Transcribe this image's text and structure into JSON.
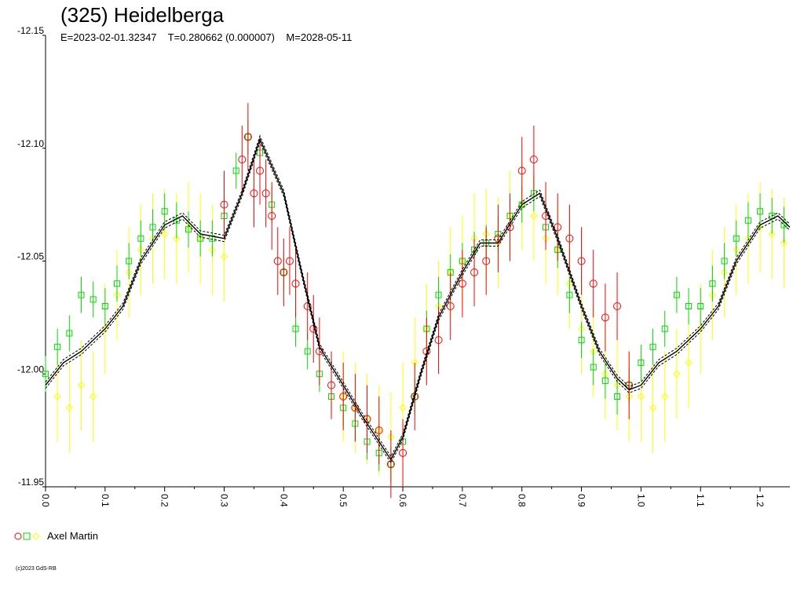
{
  "title": "(325) Heidelberga",
  "subtitle": "E=2023-02-01.32347    T=0.280662 (0.000007)    M=2028-05-11",
  "legend": {
    "label": "Axel Martin"
  },
  "copyright": "(c)2023 GdS-RB",
  "colors": {
    "red": "#ff0000",
    "green": "#00dd00",
    "yellow": "#ffff00",
    "model": "#000000"
  },
  "chart_data": {
    "type": "scatter",
    "title": "(325) Heidelberga",
    "xlabel": "",
    "ylabel": "",
    "xlim": [
      0.0,
      1.25
    ],
    "ylim": [
      -12.15,
      -11.95
    ],
    "y_inverted": true,
    "x_ticks": [
      "0.0",
      "0.1",
      "0.2",
      "0.3",
      "0.4",
      "0.5",
      "0.6",
      "0.7",
      "0.8",
      "0.9",
      "1.0",
      "1.1",
      "1.2"
    ],
    "y_ticks": [
      "-12.15",
      "-12.10",
      "-12.05",
      "-12.00",
      "-11.95"
    ],
    "model_curve": {
      "x": [
        0.0,
        0.03,
        0.06,
        0.1,
        0.13,
        0.16,
        0.2,
        0.23,
        0.26,
        0.3,
        0.33,
        0.36,
        0.4,
        0.43,
        0.46,
        0.5,
        0.53,
        0.56,
        0.58,
        0.6,
        0.63,
        0.66,
        0.7,
        0.73,
        0.76,
        0.8,
        0.83,
        0.86,
        0.9,
        0.93,
        0.96,
        0.98,
        1.0,
        1.03,
        1.06,
        1.1,
        1.13,
        1.16,
        1.2,
        1.23,
        1.25
      ],
      "y": [
        -11.995,
        -12.005,
        -12.01,
        -12.02,
        -12.03,
        -12.05,
        -12.066,
        -12.07,
        -12.062,
        -12.06,
        -12.08,
        -12.104,
        -12.08,
        -12.045,
        -12.012,
        -11.995,
        -11.982,
        -11.97,
        -11.962,
        -11.972,
        -12.0,
        -12.025,
        -12.045,
        -12.058,
        -12.058,
        -12.075,
        -12.08,
        -12.06,
        -12.03,
        -12.01,
        -11.998,
        -11.993,
        -11.995,
        -12.005,
        -12.01,
        -12.02,
        -12.03,
        -12.05,
        -12.066,
        -12.07,
        -12.065
      ]
    },
    "series": [
      {
        "marker": "circle",
        "color": "red",
        "x": [
          0.3,
          0.33,
          0.34,
          0.35,
          0.36,
          0.37,
          0.38,
          0.39,
          0.4,
          0.41,
          0.42,
          0.44,
          0.45,
          0.46,
          0.48,
          0.5,
          0.52,
          0.54,
          0.56,
          0.58,
          0.6,
          0.62,
          0.64,
          0.66,
          0.68,
          0.7,
          0.72,
          0.74,
          0.76,
          0.78,
          0.8,
          0.82,
          0.84,
          0.86,
          0.88,
          0.9,
          0.92,
          0.94,
          0.96,
          0.98
        ],
        "y": [
          -12.075,
          -12.095,
          -12.105,
          -12.08,
          -12.09,
          -12.08,
          -12.07,
          -12.05,
          -12.045,
          -12.05,
          -12.04,
          -12.03,
          -12.02,
          -12.01,
          -11.995,
          -11.99,
          -11.985,
          -11.98,
          -11.975,
          -11.96,
          -11.965,
          -11.99,
          -12.01,
          -12.015,
          -12.03,
          -12.04,
          -12.045,
          -12.05,
          -12.06,
          -12.065,
          -12.09,
          -12.095,
          -12.07,
          -12.065,
          -12.06,
          -12.05,
          -12.04,
          -12.025,
          -12.03,
          -11.995
        ],
        "error": 0.015
      },
      {
        "marker": "square",
        "color": "green",
        "x": [
          0.0,
          0.02,
          0.04,
          0.06,
          0.08,
          0.1,
          0.12,
          0.14,
          0.16,
          0.18,
          0.2,
          0.22,
          0.24,
          0.26,
          0.28,
          0.3,
          0.32,
          0.34,
          0.36,
          0.38,
          0.4,
          0.42,
          0.44,
          0.46,
          0.48,
          0.5,
          0.52,
          0.54,
          0.56,
          0.58,
          0.6,
          0.62,
          0.64,
          0.66,
          0.68,
          0.7,
          0.72,
          0.74,
          0.76,
          0.78,
          0.8,
          0.82,
          0.84,
          0.86,
          0.88,
          0.9,
          0.92,
          0.94,
          0.96,
          0.98,
          1.0,
          1.02,
          1.04,
          1.06,
          1.08,
          1.1,
          1.12,
          1.14,
          1.16,
          1.18,
          1.2,
          1.22,
          1.24
        ],
        "y": [
          -12.0,
          -12.012,
          -12.018,
          -12.035,
          -12.033,
          -12.03,
          -12.04,
          -12.05,
          -12.06,
          -12.065,
          -12.072,
          -12.068,
          -12.064,
          -12.06,
          -12.06,
          -12.07,
          -12.09,
          -12.105,
          -12.098,
          -12.075,
          -12.045,
          -12.02,
          -12.01,
          -12.0,
          -11.99,
          -11.985,
          -11.978,
          -11.97,
          -11.965,
          -11.96,
          -11.97,
          -11.99,
          -12.02,
          -12.035,
          -12.045,
          -12.05,
          -12.055,
          -12.058,
          -12.062,
          -12.07,
          -12.075,
          -12.08,
          -12.065,
          -12.055,
          -12.035,
          -12.015,
          -12.003,
          -11.997,
          -11.99,
          -11.995,
          -12.005,
          -12.012,
          -12.02,
          -12.035,
          -12.03,
          -12.03,
          -12.04,
          -12.05,
          -12.06,
          -12.068,
          -12.072,
          -12.07,
          -12.066
        ],
        "error": 0.008
      },
      {
        "marker": "diamond",
        "color": "yellow",
        "x": [
          0.02,
          0.04,
          0.06,
          0.08,
          0.1,
          0.12,
          0.14,
          0.16,
          0.18,
          0.2,
          0.22,
          0.24,
          0.26,
          0.28,
          0.3,
          0.5,
          0.52,
          0.54,
          0.56,
          0.58,
          0.6,
          0.62,
          0.64,
          0.66,
          0.68,
          0.7,
          0.72,
          0.74,
          0.76,
          0.78,
          0.8,
          0.82,
          0.84,
          0.86,
          0.88,
          0.9,
          0.92,
          0.94,
          0.96,
          0.98,
          1.0,
          1.02,
          1.04,
          1.06,
          1.08,
          1.1,
          1.12,
          1.14,
          1.16,
          1.18,
          1.2,
          1.22,
          1.24
        ],
        "y": [
          -11.99,
          -11.985,
          -11.995,
          -11.99,
          -12.02,
          -12.035,
          -12.045,
          -12.055,
          -12.06,
          -12.062,
          -12.06,
          -12.065,
          -12.06,
          -12.055,
          -12.052,
          -11.99,
          -11.985,
          -11.98,
          -11.975,
          -11.972,
          -11.985,
          -12.005,
          -12.02,
          -12.03,
          -12.045,
          -12.05,
          -12.06,
          -12.062,
          -12.058,
          -12.07,
          -12.075,
          -12.07,
          -12.06,
          -12.055,
          -12.04,
          -12.02,
          -12.01,
          -12.0,
          -11.995,
          -11.99,
          -11.99,
          -11.985,
          -11.99,
          -12.0,
          -12.005,
          -12.02,
          -12.035,
          -12.045,
          -12.055,
          -12.06,
          -12.065,
          -12.062,
          -12.058
        ],
        "error": 0.02
      }
    ]
  }
}
